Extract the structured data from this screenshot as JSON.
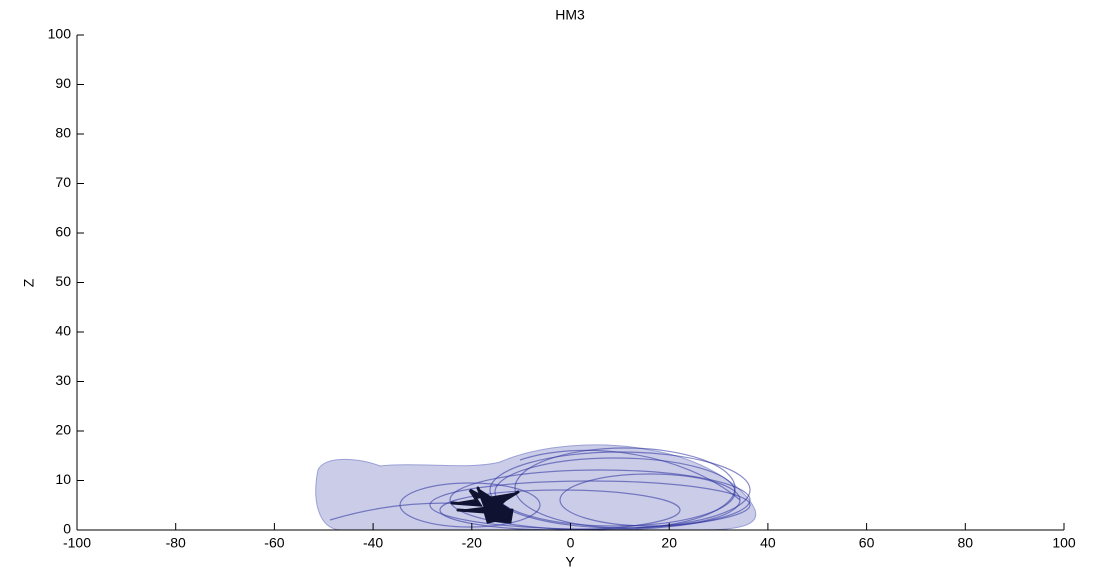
{
  "chart_data": {
    "type": "projection",
    "title": "HM3",
    "xlabel": "Y",
    "ylabel": "Z",
    "xlim": [
      -100,
      100
    ],
    "xticks": [
      -100,
      -80,
      -60,
      -40,
      -20,
      0,
      20,
      40,
      60,
      80,
      100
    ],
    "ylim": [
      0,
      100
    ],
    "yticks": [
      0,
      10,
      20,
      30,
      40,
      50,
      60,
      70,
      80,
      90,
      100
    ]
  }
}
